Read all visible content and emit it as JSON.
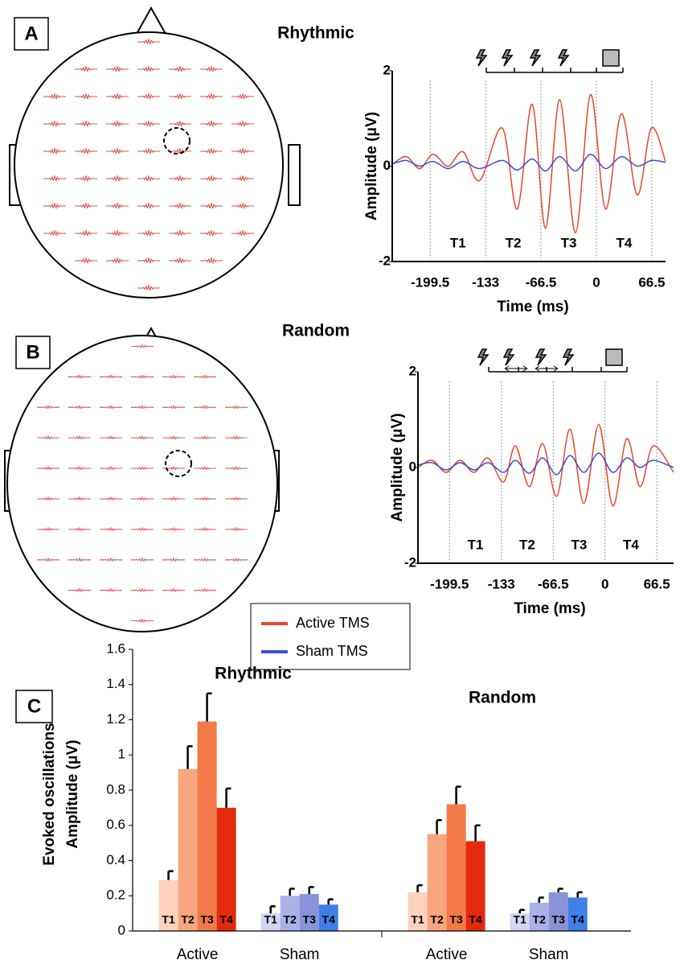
{
  "chart_data": [
    {
      "type": "line",
      "panel": "A",
      "title": "Rhythmic",
      "xlabel": "Time (ms)",
      "ylabel": "Amplitude (μV)",
      "x": [
        -244,
        -228,
        -212,
        -196,
        -178,
        -160,
        -140,
        -113,
        -95,
        -77,
        -61,
        -44,
        -25,
        -7,
        11,
        30,
        49,
        66,
        83
      ],
      "series": [
        {
          "name": "Active TMS",
          "color": "#e8472a",
          "values": [
            0.05,
            0.2,
            -0.05,
            0.25,
            0.0,
            0.3,
            -0.3,
            0.8,
            -0.9,
            1.3,
            -1.3,
            1.4,
            -1.4,
            1.5,
            -0.9,
            1.1,
            -0.6,
            0.8,
            0.1
          ]
        },
        {
          "name": "Sham TMS",
          "color": "#3b4fd8",
          "values": [
            0.05,
            0.12,
            0.0,
            0.1,
            -0.05,
            0.1,
            -0.05,
            0.12,
            -0.08,
            0.15,
            -0.1,
            0.2,
            -0.1,
            0.25,
            -0.05,
            0.2,
            0.0,
            0.12,
            0.08
          ]
        }
      ],
      "xlim": [
        -245,
        83
      ],
      "xticks": [
        -199.5,
        -133,
        -66.5,
        0,
        66.5
      ],
      "ylim": [
        -2,
        2
      ],
      "yticks": [
        -2,
        0,
        2
      ],
      "segment_labels": [
        "T1",
        "T2",
        "T3",
        "T4"
      ]
    },
    {
      "type": "line",
      "panel": "B",
      "title": "Random",
      "xlabel": "Time (ms)",
      "ylabel": "Amplitude (μV)",
      "x": [
        -240,
        -222,
        -204,
        -186,
        -168,
        -150,
        -130,
        -115,
        -97,
        -80,
        -62,
        -45,
        -27,
        -8,
        10,
        28,
        45,
        62,
        88
      ],
      "series": [
        {
          "color": "#e8472a",
          "values": [
            0.0,
            0.15,
            -0.1,
            0.15,
            -0.1,
            0.2,
            -0.3,
            0.45,
            -0.4,
            0.5,
            -0.6,
            0.8,
            -0.75,
            0.9,
            -0.8,
            0.6,
            -0.4,
            0.45,
            -0.1
          ]
        },
        {
          "color": "#3b4fd8",
          "values": [
            0.05,
            0.1,
            -0.05,
            0.1,
            -0.05,
            0.1,
            -0.1,
            0.15,
            -0.12,
            0.2,
            -0.15,
            0.25,
            -0.1,
            0.3,
            -0.1,
            0.2,
            0.0,
            0.15,
            0.0
          ]
        }
      ],
      "xlim": [
        -240,
        88
      ],
      "xticks": [
        -199.5,
        -133,
        -66.5,
        0,
        66.5
      ],
      "ylim": [
        -2,
        2
      ],
      "yticks": [
        -2,
        0,
        2
      ],
      "segment_labels": [
        "T1",
        "T2",
        "T3",
        "T4"
      ]
    },
    {
      "type": "bar",
      "panel": "C",
      "ylabel": [
        "Evoked oscillations",
        "Amplitude (μV)"
      ],
      "groups": [
        "Rhythmic",
        "Random"
      ],
      "categories": [
        "Active",
        "Sham",
        "Active",
        "Sham"
      ],
      "series": [
        {
          "name": "T1",
          "colors": [
            "#fdd3bd",
            "#d3d6f2",
            "#fdd3bd",
            "#d3d6f2"
          ],
          "values": [
            0.29,
            0.1,
            0.22,
            0.1
          ],
          "errors": [
            0.05,
            0.04,
            0.04,
            0.02
          ]
        },
        {
          "name": "T2",
          "colors": [
            "#f9a67e",
            "#aab1e8",
            "#f9a67e",
            "#aab1e8"
          ],
          "values": [
            0.92,
            0.2,
            0.55,
            0.16
          ],
          "errors": [
            0.13,
            0.04,
            0.08,
            0.03
          ]
        },
        {
          "name": "T3",
          "colors": [
            "#f27a48",
            "#8893d9",
            "#f27a48",
            "#8893d9"
          ],
          "values": [
            1.19,
            0.21,
            0.72,
            0.22
          ],
          "errors": [
            0.16,
            0.04,
            0.1,
            0.02
          ]
        },
        {
          "name": "T4",
          "colors": [
            "#e42a0c",
            "#3f7fe8",
            "#e42a0c",
            "#3f7fe8"
          ],
          "values": [
            0.7,
            0.15,
            0.51,
            0.19
          ],
          "errors": [
            0.11,
            0.03,
            0.09,
            0.03
          ]
        }
      ],
      "ylim": [
        0,
        1.6
      ],
      "yticks": [
        0,
        0.2,
        0.4,
        0.6,
        0.8,
        1,
        1.2,
        1.4,
        1.6
      ]
    }
  ]
}
